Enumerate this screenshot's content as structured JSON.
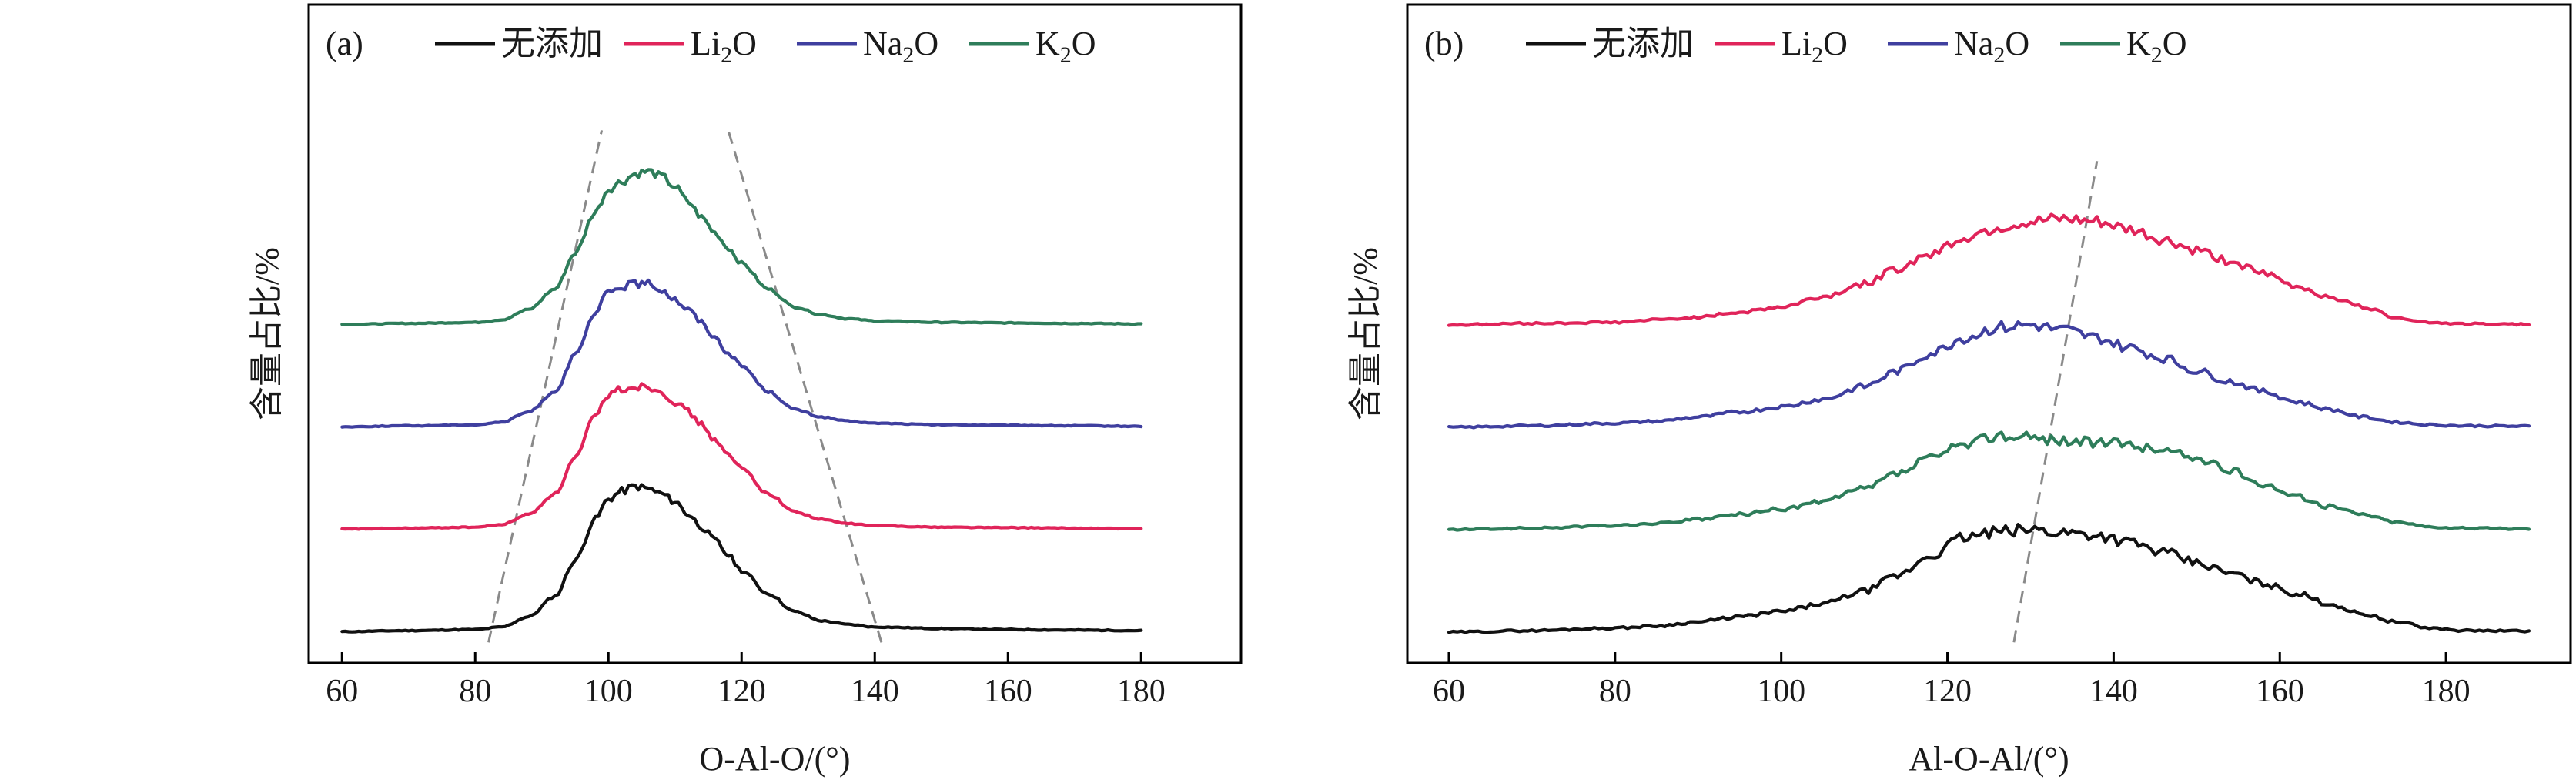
{
  "chart_data": [
    {
      "type": "line",
      "panel_label": "(a)",
      "xlabel": "O-Al-O/(°)",
      "ylabel": "含量占比/%",
      "xlim": [
        55,
        195
      ],
      "xticks": [
        60,
        80,
        100,
        120,
        140,
        160,
        180
      ],
      "x_tick_labels": [
        "60",
        "80",
        "100",
        "120",
        "140",
        "160",
        "180"
      ],
      "yticks_shown": false,
      "legend_placement": "top",
      "legend": [
        "无添加",
        "Li2O",
        "Na2O",
        "K2O"
      ],
      "series": [
        {
          "name": "无添加",
          "color": "#111111",
          "offset": 0,
          "x": [
            60,
            70,
            80,
            84,
            88,
            92,
            95,
            98,
            100,
            102,
            104,
            106,
            108,
            110,
            112,
            114,
            116,
            118,
            120,
            124,
            128,
            132,
            136,
            140,
            150,
            160,
            170,
            180
          ],
          "y": [
            0.1,
            0.3,
            0.5,
            1.0,
            3.0,
            7.0,
            14.0,
            22.0,
            26.0,
            27.5,
            28.5,
            28.0,
            27.0,
            25.5,
            23.0,
            20.5,
            18.0,
            15.0,
            12.0,
            7.5,
            4.0,
            2.2,
            1.5,
            1.0,
            0.7,
            0.5,
            0.4,
            0.3
          ]
        },
        {
          "name": "Li2O",
          "color": "#e0245a",
          "offset": 20,
          "x": [
            60,
            70,
            80,
            84,
            88,
            92,
            95,
            98,
            100,
            102,
            104,
            106,
            108,
            110,
            112,
            114,
            116,
            118,
            120,
            124,
            128,
            132,
            136,
            140,
            150,
            160,
            170,
            180
          ],
          "y": [
            0.1,
            0.3,
            0.5,
            1.0,
            3.0,
            7.0,
            14.0,
            22.0,
            26.5,
            27.5,
            28.0,
            28.0,
            27.0,
            25.0,
            23.0,
            20.5,
            17.5,
            14.5,
            12.0,
            7.0,
            3.5,
            2.0,
            1.2,
            0.8,
            0.5,
            0.4,
            0.3,
            0.2
          ]
        },
        {
          "name": "Na2O",
          "color": "#3f3f9f",
          "offset": 40,
          "x": [
            60,
            70,
            80,
            84,
            88,
            92,
            95,
            98,
            100,
            102,
            104,
            106,
            108,
            110,
            112,
            114,
            116,
            118,
            120,
            124,
            128,
            132,
            136,
            140,
            150,
            160,
            170,
            180
          ],
          "y": [
            0.1,
            0.3,
            0.5,
            1.0,
            3.0,
            7.0,
            14.0,
            22.0,
            26.5,
            27.5,
            28.0,
            28.0,
            27.0,
            25.0,
            23.0,
            20.5,
            17.5,
            14.5,
            12.0,
            7.0,
            3.5,
            2.0,
            1.2,
            0.8,
            0.5,
            0.4,
            0.3,
            0.2
          ]
        },
        {
          "name": "K2O",
          "color": "#2e7d5a",
          "offset": 60,
          "x": [
            60,
            70,
            80,
            84,
            88,
            92,
            95,
            98,
            100,
            102,
            104,
            106,
            108,
            110,
            112,
            114,
            116,
            118,
            120,
            124,
            128,
            132,
            136,
            140,
            150,
            160,
            170,
            180
          ],
          "y": [
            0.1,
            0.3,
            0.5,
            1.0,
            3.0,
            7.0,
            14.0,
            22.0,
            26.5,
            28.0,
            29.5,
            30.0,
            29.0,
            27.0,
            24.0,
            21.0,
            18.0,
            15.0,
            12.0,
            7.0,
            3.5,
            2.0,
            1.2,
            0.8,
            0.5,
            0.4,
            0.3,
            0.2
          ]
        }
      ],
      "guides": [
        {
          "x": [
            82,
            99
          ],
          "y": [
            -2,
            98
          ]
        },
        {
          "x": [
            141,
            118
          ],
          "y": [
            -2,
            98
          ]
        }
      ]
    },
    {
      "type": "line",
      "panel_label": "(b)",
      "xlabel": "Al-O-Al/(°)",
      "ylabel": "含量占比/%",
      "xlim": [
        55,
        195
      ],
      "xticks": [
        60,
        80,
        100,
        120,
        140,
        160,
        180
      ],
      "x_tick_labels": [
        "60",
        "80",
        "100",
        "120",
        "140",
        "160",
        "180"
      ],
      "yticks_shown": false,
      "legend_placement": "top",
      "legend": [
        "无添加",
        "Li2O",
        "Na2O",
        "K2O"
      ],
      "series": [
        {
          "name": "无添加",
          "color": "#111111",
          "offset": 0,
          "x": [
            60,
            70,
            80,
            85,
            90,
            95,
            100,
            105,
            110,
            114,
            118,
            122,
            126,
            130,
            134,
            138,
            142,
            146,
            150,
            154,
            158,
            162,
            166,
            170,
            174,
            178,
            182,
            190
          ],
          "y": [
            0,
            0.3,
            0.8,
            1.2,
            2.0,
            3.0,
            4.0,
            5.5,
            8.0,
            11.0,
            15.0,
            18.5,
            19.5,
            20.0,
            19.5,
            19.0,
            17.5,
            15.5,
            13.5,
            11.5,
            9.5,
            7.5,
            5.5,
            3.5,
            2.0,
            0.8,
            0.3,
            0.2
          ]
        },
        {
          "name": "K2O",
          "color": "#2e7d5a",
          "offset": 20,
          "x": [
            60,
            70,
            80,
            85,
            90,
            95,
            100,
            105,
            110,
            114,
            118,
            122,
            126,
            130,
            134,
            138,
            142,
            146,
            150,
            154,
            158,
            162,
            166,
            170,
            174,
            178,
            182,
            190
          ],
          "y": [
            0,
            0.3,
            0.8,
            1.2,
            2.0,
            3.0,
            4.0,
            5.5,
            8.0,
            11.0,
            14.0,
            16.5,
            18.5,
            18.0,
            17.5,
            17.0,
            16.5,
            15.5,
            14.0,
            11.5,
            9.0,
            6.5,
            4.5,
            3.0,
            1.5,
            0.6,
            0.3,
            0.2
          ]
        },
        {
          "name": "Na2O",
          "color": "#3f3f9f",
          "offset": 40,
          "x": [
            60,
            70,
            80,
            85,
            90,
            95,
            100,
            105,
            110,
            114,
            118,
            122,
            126,
            130,
            134,
            138,
            142,
            146,
            150,
            154,
            158,
            162,
            166,
            170,
            174,
            178,
            182,
            190
          ],
          "y": [
            0,
            0.3,
            0.8,
            1.2,
            2.0,
            3.0,
            4.0,
            5.5,
            8.0,
            11.0,
            14.5,
            17.5,
            19.5,
            20.0,
            19.0,
            17.5,
            15.5,
            13.5,
            11.0,
            9.0,
            7.0,
            5.0,
            3.5,
            2.0,
            1.0,
            0.5,
            0.3,
            0.2
          ]
        },
        {
          "name": "Li2O",
          "color": "#e0245a",
          "offset": 60,
          "x": [
            60,
            70,
            80,
            85,
            90,
            95,
            100,
            105,
            110,
            114,
            118,
            122,
            126,
            130,
            134,
            138,
            142,
            146,
            150,
            154,
            158,
            162,
            166,
            170,
            174,
            178,
            182,
            190
          ],
          "y": [
            0,
            0.3,
            0.5,
            1.0,
            1.5,
            2.5,
            3.5,
            5.5,
            8.0,
            11.0,
            14.0,
            17.0,
            19.0,
            20.0,
            20.5,
            20.0,
            18.5,
            16.5,
            14.5,
            12.5,
            10.0,
            7.5,
            5.5,
            3.5,
            1.5,
            0.5,
            0.2,
            0.1
          ]
        }
      ],
      "guides": [
        {
          "x": [
            128,
            138
          ],
          "y": [
            -2,
            92
          ]
        }
      ]
    }
  ]
}
